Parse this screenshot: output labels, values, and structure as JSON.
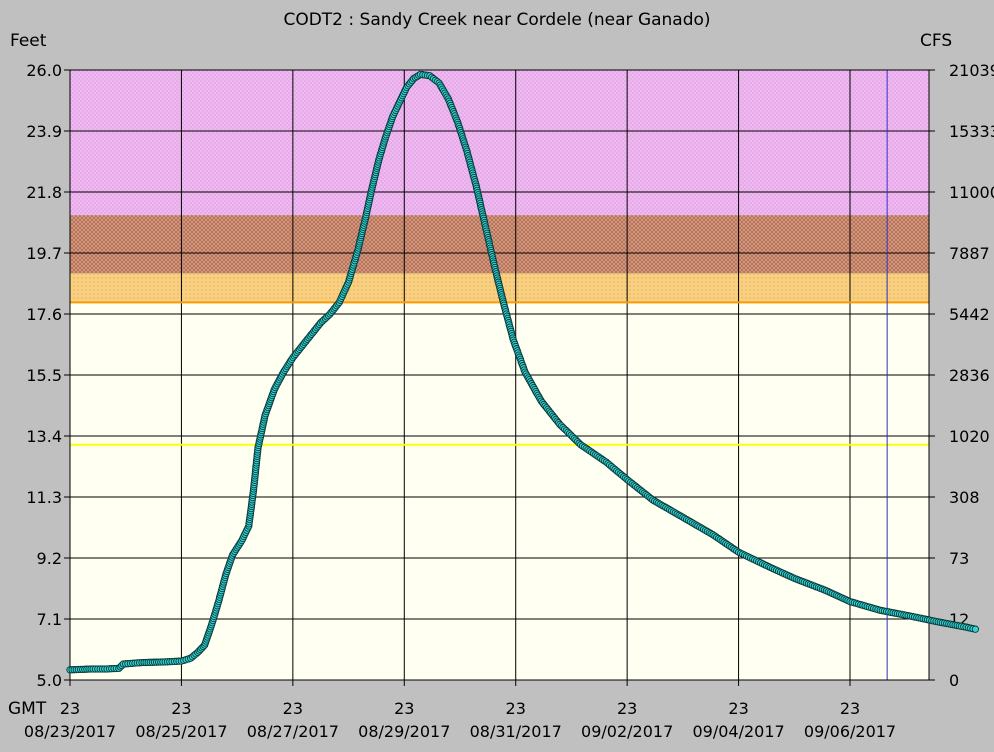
{
  "chart_data": {
    "type": "line",
    "title": "CODT2  :  Sandy Creek near Cordele (near Ganado)",
    "ylabel_left": "Feet",
    "ylabel_right": "CFS",
    "gmt_label": "GMT",
    "ylim": [
      5.0,
      26.0
    ],
    "y_ticks": [
      "26.0",
      "23.9",
      "21.8",
      "19.7",
      "17.6",
      "15.5",
      "13.4",
      "11.3",
      "9.2",
      "7.1",
      "5.0"
    ],
    "y_tick_values": [
      26.0,
      23.9,
      21.8,
      19.7,
      17.6,
      15.5,
      13.4,
      11.3,
      9.2,
      7.1,
      5.0
    ],
    "y_right_ticks": [
      "21039",
      "15333",
      "11000",
      "7887",
      "5442",
      "2836",
      "1020",
      "308",
      "73",
      "12",
      "0"
    ],
    "x_start": "08/23/2017 23:00",
    "x_end": "09/07/2017 15:00",
    "x_ticks": [
      {
        "hour": "23",
        "date": "08/23/2017",
        "x": "08/23/2017 23:00"
      },
      {
        "hour": "23",
        "date": "08/25/2017",
        "x": "08/25/2017 23:00"
      },
      {
        "hour": "23",
        "date": "08/27/2017",
        "x": "08/27/2017 23:00"
      },
      {
        "hour": "23",
        "date": "08/29/2017",
        "x": "08/29/2017 23:00"
      },
      {
        "hour": "23",
        "date": "08/31/2017",
        "x": "08/31/2017 23:00"
      },
      {
        "hour": "23",
        "date": "09/02/2017",
        "x": "09/02/2017 23:00"
      },
      {
        "hour": "23",
        "date": "09/04/2017",
        "x": "09/04/2017 23:00"
      },
      {
        "hour": "23",
        "date": "09/06/2017",
        "x": "09/06/2017 23:00"
      }
    ],
    "flood_bands": [
      {
        "from": 21.0,
        "to": 26.0,
        "color": "#f0b8f0",
        "pattern": "#d090d8"
      },
      {
        "from": 19.0,
        "to": 21.0,
        "color": "#d89a80",
        "pattern": "#a06048"
      },
      {
        "from": 18.0,
        "to": 19.0,
        "color": "#f8d080",
        "pattern": "#d8a050"
      },
      {
        "from": 5.0,
        "to": 18.0,
        "color": "#fffff2",
        "pattern": null
      }
    ],
    "threshold_lines": [
      {
        "value": 18.0,
        "color": "#ff9900"
      },
      {
        "value": 13.1,
        "color": "#ffff00"
      }
    ],
    "series": [
      {
        "color": "#33d4d4",
        "points": [
          [
            "08/23/2017 23:00",
            5.35
          ],
          [
            "08/24/2017 09:00",
            5.38
          ],
          [
            "08/24/2017 15:00",
            5.38
          ],
          [
            "08/24/2017 20:00",
            5.4
          ],
          [
            "08/24/2017 22:00",
            5.55
          ],
          [
            "08/25/2017 06:00",
            5.6
          ],
          [
            "08/25/2017 15:00",
            5.62
          ],
          [
            "08/25/2017 23:00",
            5.65
          ],
          [
            "08/26/2017 03:00",
            5.75
          ],
          [
            "08/26/2017 06:00",
            5.95
          ],
          [
            "08/26/2017 09:00",
            6.2
          ],
          [
            "08/26/2017 12:00",
            6.9
          ],
          [
            "08/26/2017 15:00",
            7.7
          ],
          [
            "08/26/2017 18:00",
            8.6
          ],
          [
            "08/26/2017 21:00",
            9.3
          ],
          [
            "08/27/2017 01:00",
            9.8
          ],
          [
            "08/27/2017 04:00",
            10.3
          ],
          [
            "08/27/2017 06:00",
            11.5
          ],
          [
            "08/27/2017 08:00",
            13.0
          ],
          [
            "08/27/2017 11:00",
            14.1
          ],
          [
            "08/27/2017 15:00",
            15.0
          ],
          [
            "08/27/2017 19:00",
            15.6
          ],
          [
            "08/27/2017 23:00",
            16.1
          ],
          [
            "08/28/2017 03:00",
            16.5
          ],
          [
            "08/28/2017 07:00",
            16.9
          ],
          [
            "08/28/2017 11:00",
            17.3
          ],
          [
            "08/28/2017 15:00",
            17.6
          ],
          [
            "08/28/2017 19:00",
            18.0
          ],
          [
            "08/28/2017 23:00",
            18.7
          ],
          [
            "08/29/2017 03:00",
            19.8
          ],
          [
            "08/29/2017 06:00",
            20.8
          ],
          [
            "08/29/2017 09:00",
            21.9
          ],
          [
            "08/29/2017 12:00",
            22.9
          ],
          [
            "08/29/2017 15:00",
            23.7
          ],
          [
            "08/29/2017 18:00",
            24.4
          ],
          [
            "08/29/2017 21:00",
            24.9
          ],
          [
            "08/30/2017 00:00",
            25.4
          ],
          [
            "08/30/2017 03:00",
            25.7
          ],
          [
            "08/30/2017 06:00",
            25.85
          ],
          [
            "08/30/2017 10:00",
            25.8
          ],
          [
            "08/30/2017 14:00",
            25.55
          ],
          [
            "08/30/2017 18:00",
            25.0
          ],
          [
            "08/30/2017 22:00",
            24.2
          ],
          [
            "08/31/2017 02:00",
            23.2
          ],
          [
            "08/31/2017 06:00",
            22.0
          ],
          [
            "08/31/2017 10:00",
            20.6
          ],
          [
            "08/31/2017 14:00",
            19.2
          ],
          [
            "08/31/2017 18:00",
            17.9
          ],
          [
            "08/31/2017 22:00",
            16.7
          ],
          [
            "09/01/2017 03:00",
            15.6
          ],
          [
            "09/01/2017 10:00",
            14.6
          ],
          [
            "09/01/2017 18:00",
            13.8
          ],
          [
            "09/02/2017 03:00",
            13.1
          ],
          [
            "09/02/2017 14:00",
            12.5
          ],
          [
            "09/02/2017 23:00",
            11.9
          ],
          [
            "09/03/2017 10:00",
            11.2
          ],
          [
            "09/03/2017 23:00",
            10.6
          ],
          [
            "09/04/2017 12:00",
            10.0
          ],
          [
            "09/04/2017 23:00",
            9.4
          ],
          [
            "09/05/2017 12:00",
            8.9
          ],
          [
            "09/05/2017 23:00",
            8.5
          ],
          [
            "09/06/2017 12:00",
            8.1
          ],
          [
            "09/06/2017 23:00",
            7.7
          ],
          [
            "09/07/2017 12:00",
            7.4
          ],
          [
            "09/08/2017 01:00",
            7.2
          ],
          [
            "09/08/2017 13:00",
            7.0
          ],
          [
            "09/08/2017 23:00",
            6.85
          ],
          [
            "09/09/2017 05:00",
            6.75
          ]
        ]
      }
    ],
    "grid": true,
    "legend": "none"
  }
}
